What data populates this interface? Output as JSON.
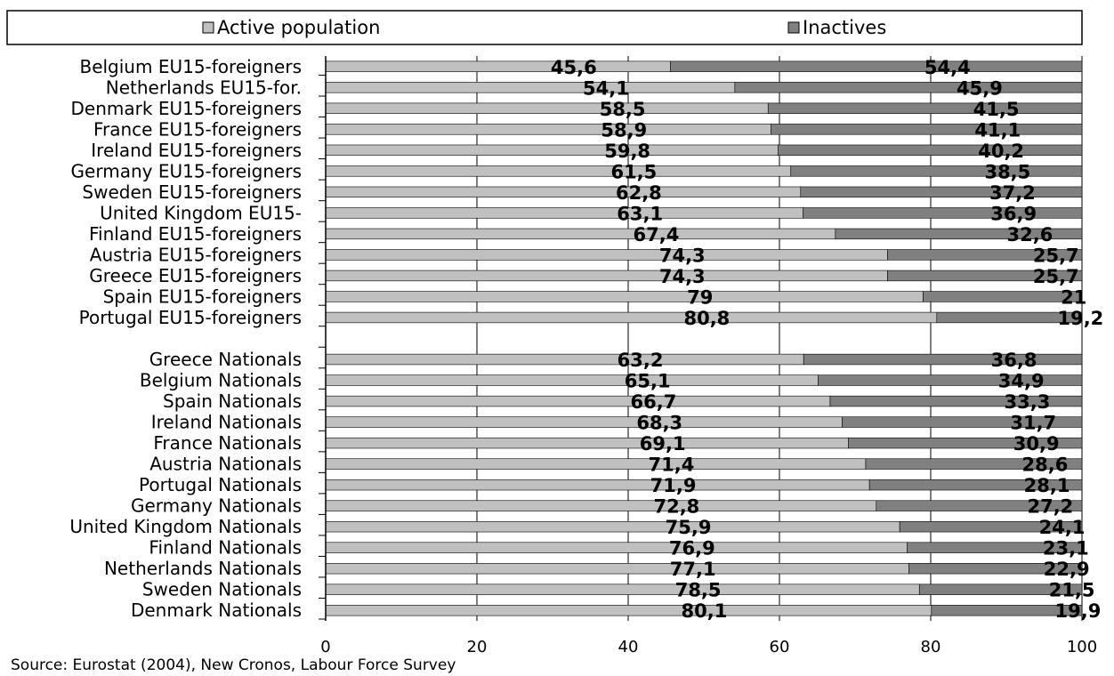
{
  "chart_data": {
    "type": "bar",
    "orientation": "horizontal",
    "stacked": true,
    "legend_position": "top",
    "grid": true,
    "xlim": [
      0,
      100
    ],
    "x_ticks": [
      "0",
      "20",
      "40",
      "60",
      "80",
      "100"
    ],
    "colors": {
      "Active population": "#c0c0c0",
      "Inactives": "#808080"
    },
    "categories": [
      "Belgium EU15-foreigners",
      "Netherlands EU15-for.",
      "Denmark EU15-foreigners",
      "France EU15-foreigners",
      "Ireland EU15-foreigners",
      "Germany EU15-foreigners",
      "Sweden EU15-foreigners",
      "United Kingdom EU15-",
      "Finland EU15-foreigners",
      "Austria EU15-foreigners",
      "Greece EU15-foreigners",
      "Spain EU15-foreigners",
      "Portugal EU15-foreigners",
      "",
      "Greece Nationals",
      "Belgium Nationals",
      "Spain Nationals",
      "Ireland Nationals",
      "France Nationals",
      "Austria Nationals",
      "Portugal Nationals",
      "Germany Nationals",
      "United Kingdom Nationals",
      "Finland Nationals",
      "Netherlands Nationals",
      "Sweden Nationals",
      "Denmark Nationals"
    ],
    "series": [
      {
        "name": "Active population",
        "values": [
          45.6,
          54.1,
          58.5,
          58.9,
          59.8,
          61.5,
          62.8,
          63.1,
          67.4,
          74.3,
          74.3,
          79,
          80.8,
          null,
          63.2,
          65.1,
          66.7,
          68.3,
          69.1,
          71.4,
          71.9,
          72.8,
          75.9,
          76.9,
          77.1,
          78.5,
          80.1
        ],
        "labels": [
          "45,6",
          "54,1",
          "58,5",
          "58,9",
          "59,8",
          "61,5",
          "62,8",
          "63,1",
          "67,4",
          "74,3",
          "74,3",
          "79",
          "80,8",
          "",
          "63,2",
          "65,1",
          "66,7",
          "68,3",
          "69,1",
          "71,4",
          "71,9",
          "72,8",
          "75,9",
          "76,9",
          "77,1",
          "78,5",
          "80,1"
        ]
      },
      {
        "name": "Inactives",
        "values": [
          54.4,
          45.9,
          41.5,
          41.1,
          40.2,
          38.5,
          37.2,
          36.9,
          32.6,
          25.7,
          25.7,
          21,
          19.2,
          null,
          36.8,
          34.9,
          33.3,
          31.7,
          30.9,
          28.6,
          28.1,
          27.2,
          24.1,
          23.1,
          22.9,
          21.5,
          19.9
        ],
        "labels": [
          "54,4",
          "45,9",
          "41,5",
          "41,1",
          "40,2",
          "38,5",
          "37,2",
          "36,9",
          "32,6",
          "25,7",
          "25,7",
          "21",
          "19,2",
          "",
          "36,8",
          "34,9",
          "33,3",
          "31,7",
          "30,9",
          "28,6",
          "28,1",
          "27,2",
          "24,1",
          "23,1",
          "22,9",
          "21,5",
          "19,9"
        ]
      }
    ],
    "source": "Source: Eurostat (2004), New Cronos, Labour Force Survey"
  }
}
